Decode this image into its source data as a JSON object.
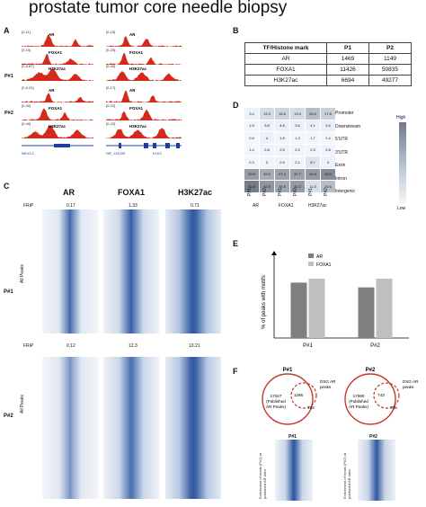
{
  "title": "prostate tumor core needle biopsy",
  "panels": {
    "a": "A",
    "b": "B",
    "c": "C",
    "d": "D",
    "e": "E",
    "f": "F"
  },
  "panelA": {
    "samples": [
      "P#1",
      "P#2"
    ],
    "left_tracks": [
      {
        "range": "[0-11]",
        "name": "AR"
      },
      {
        "range": "[0-15]",
        "name": "FOXA1"
      },
      {
        "range": "[0-8.87]",
        "name": "H3K27ac"
      },
      {
        "range": "[0-6.33]",
        "name": "AR"
      },
      {
        "range": "[0-40]",
        "name": "FOXA1"
      },
      {
        "range": "[0-40]",
        "name": "H3K27ac"
      }
    ],
    "right_tracks": [
      {
        "range": "[0-15]",
        "name": "AR"
      },
      {
        "range": "[0-20]",
        "name": "FOXA1"
      },
      {
        "range": "[0-40]",
        "name": "H3K27ac"
      },
      {
        "range": "[0-17]",
        "name": "AR"
      },
      {
        "range": "[0-22]",
        "name": "FOXA1"
      },
      {
        "range": "[0-22]",
        "name": "H3K27ac"
      }
    ],
    "gene_left": "NKX3-1",
    "gene_right_a": "NR_131205",
    "gene_right_b": "KLK3"
  },
  "panelB": {
    "headers": [
      "TF/Histone mark",
      "P1",
      "P2"
    ],
    "rows": [
      [
        "AR",
        "1469",
        "1149"
      ],
      [
        "FOXA1",
        "11426",
        "50835"
      ],
      [
        "H3K27ac",
        "6694",
        "49277"
      ]
    ]
  },
  "panelC": {
    "columns": [
      "AR",
      "FOXA1",
      "H3K27ac"
    ],
    "frip_label": "FRiP",
    "p1": {
      "label": "P#1",
      "sub": "All Peaks",
      "frip": [
        "0.17",
        "1.33",
        "0.71"
      ]
    },
    "p2": {
      "label": "P#2",
      "sub": "All Peaks",
      "frip": [
        "0.12",
        "12.3",
        "13.21"
      ]
    }
  },
  "panelD": {
    "rows": [
      "Promoter",
      "Downstream",
      "5'UTR",
      "3'UTR",
      "Exon",
      "Intron",
      "Intergenic"
    ],
    "values": [
      [
        "3.4",
        "13.3",
        "16.6",
        "13.0",
        "25.4",
        "17.8"
      ],
      [
        "1.9",
        "3.8",
        "4.8",
        "3.6",
        "4.1",
        "4.6"
      ],
      [
        "0.6",
        "4",
        "1.8",
        "1.3",
        "1.7",
        "1.4"
      ],
      [
        "1.4",
        "2.8",
        "2.5",
        "2.2",
        "2.3",
        "2.8"
      ],
      [
        "0.3",
        "2",
        "2.5",
        "2.1",
        "8.7",
        "4"
      ],
      [
        "39.6",
        "32.5",
        "37.4",
        "37.7",
        "40.3",
        "46.2"
      ],
      [
        "52.8",
        "42.5",
        "34.5",
        "40.2",
        "11.5",
        "25.6"
      ]
    ],
    "col_labels": [
      "P#1",
      "P#2",
      "P#1",
      "P#2",
      "P#1",
      "P#2"
    ],
    "groups": [
      "AR",
      "FOXA1",
      "H3K27ac"
    ],
    "legend_high": "High",
    "legend_low": "Low"
  },
  "panelE": {
    "ylabel": "% of peaks with motifs",
    "legend": [
      "AR",
      "FOXA1"
    ],
    "colors": {
      "AR": "#7f7f7f",
      "FOXA1": "#bfbfbf"
    }
  },
  "chart_data": {
    "type": "bar",
    "categories": [
      "P#1",
      "P#2"
    ],
    "series": [
      {
        "name": "AR",
        "values": [
          70,
          64
        ]
      },
      {
        "name": "FOXA1",
        "values": [
          75,
          75
        ]
      }
    ],
    "xlabel": "",
    "ylabel": "% of peaks with motifs",
    "ylim": [
      0,
      100
    ]
  },
  "panelF": {
    "p1": {
      "label": "P#1",
      "big": "17047\n(Published\nAR Peaks)",
      "overlap": "1286",
      "small": "184",
      "dsg": "DSG AR\npeaks"
    },
    "p2": {
      "label": "P#2",
      "big": "17590\n(Published\nAR Peaks)",
      "overlap": "743",
      "small": "405",
      "dsg": "DSG AR\npeaks"
    },
    "heat_ylabel_p1": "Enrichment of reads (P#1) at published AR sites",
    "heat_ylabel_p2": "Enrichment of reads (P#2) at published AR sites"
  }
}
